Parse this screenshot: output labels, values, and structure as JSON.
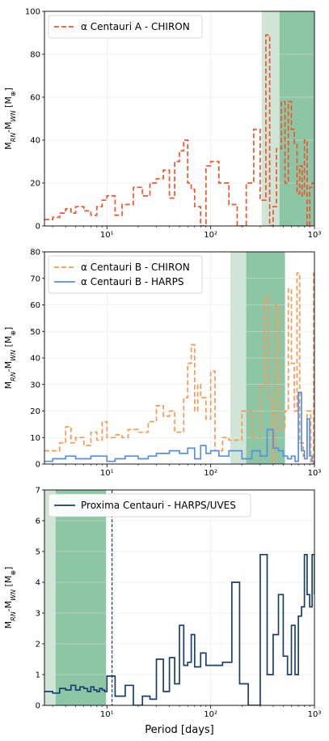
{
  "xlabel": "Period [days]",
  "chart_data": [
    {
      "type": "line",
      "step": true,
      "x_scale": "log",
      "xlim": [
        2.5,
        1000
      ],
      "ylim": [
        0,
        100
      ],
      "ylabel": "M_RN-M_WN [M_⊕]",
      "yticks": [
        0,
        20,
        40,
        60,
        80,
        100
      ],
      "xticks": [
        10,
        100,
        1000
      ],
      "xtick_labels": [
        "10¹",
        "10²",
        "10³"
      ],
      "legend": "top-left",
      "grid": true,
      "bands": [
        {
          "x0": 310,
          "x1": 460,
          "color": "#cfe5d6"
        },
        {
          "x0": 460,
          "x1": 1000,
          "color": "#8dc6a5"
        }
      ],
      "series": [
        {
          "name": "α Centauri A - CHIRON",
          "color": "#f0552e",
          "dash": "6,3",
          "x": [
            2.5,
            3.0,
            3.5,
            4.0,
            4.5,
            5.0,
            6.0,
            7.0,
            8.0,
            9.0,
            10.0,
            12.0,
            14.0,
            18.0,
            22.0,
            26.0,
            30.0,
            35.0,
            40.0,
            45.0,
            50.0,
            55.0,
            60.0,
            65.0,
            70.0,
            80.0,
            90.0,
            100.0,
            120.0,
            150.0,
            180.0,
            220.0,
            260.0,
            300.0,
            340.0,
            370.0,
            400.0,
            430.0,
            480.0,
            520.0,
            560.0,
            600.0,
            640.0,
            680.0,
            720.0,
            760.0,
            800.0,
            850.0,
            900.0,
            950.0,
            1000.0
          ],
          "values": [
            3,
            4,
            6,
            8,
            6,
            9,
            7,
            5,
            9,
            12,
            14,
            5,
            10,
            18,
            14,
            20,
            22,
            26,
            13,
            30,
            35,
            40,
            20,
            17,
            9,
            0,
            28,
            30,
            20,
            10,
            0,
            20,
            45,
            12,
            89,
            0,
            9,
            36,
            58,
            20,
            58,
            45,
            38,
            15,
            28,
            14,
            40,
            0,
            18,
            20,
            20
          ]
        }
      ]
    },
    {
      "type": "line",
      "step": true,
      "x_scale": "log",
      "xlim": [
        2.5,
        1000
      ],
      "ylim": [
        0,
        80
      ],
      "ylabel": "M_RN-M_WN [M_⊕]",
      "yticks": [
        0,
        10,
        20,
        30,
        40,
        50,
        60,
        70,
        80
      ],
      "xticks": [
        10,
        100,
        1000
      ],
      "xtick_labels": [
        "10¹",
        "10²",
        "10³"
      ],
      "legend": "top-left",
      "grid": true,
      "bands": [
        {
          "x0": 155,
          "x1": 220,
          "color": "#cfe5d6"
        },
        {
          "x0": 220,
          "x1": 520,
          "color": "#8dc6a5"
        }
      ],
      "series": [
        {
          "name": "α Centauri B - CHIRON",
          "color": "#f79a55",
          "dash": "6,3",
          "x": [
            2.5,
            3.5,
            4.0,
            4.5,
            5.0,
            6.0,
            7.0,
            8.0,
            9.0,
            10.0,
            12.0,
            14.0,
            16.0,
            20.0,
            25.0,
            30.0,
            35.0,
            40.0,
            45.0,
            50.0,
            55.0,
            60.0,
            65.0,
            70.0,
            75.0,
            80.0,
            90.0,
            100.0,
            110.0,
            130.0,
            150.0,
            175.0,
            200.0,
            250.0,
            300.0,
            330.0,
            360.0,
            390.0,
            420.0,
            460.0,
            520.0,
            560.0,
            600.0,
            640.0,
            680.0,
            720.0,
            780.0,
            850.0,
            920.0,
            980.0,
            1000.0
          ],
          "values": [
            5,
            8,
            14,
            8,
            10,
            7,
            12,
            9,
            16,
            10,
            11,
            10,
            13,
            12,
            16,
            22,
            18,
            20,
            12,
            12,
            25,
            38,
            45,
            20,
            30,
            25,
            17,
            35,
            5,
            10,
            9,
            9,
            20,
            10,
            29,
            63,
            25,
            0,
            60,
            13,
            20,
            66,
            38,
            20,
            72,
            8,
            3,
            20,
            0,
            72,
            72
          ]
        },
        {
          "name": "α Centauri B - HARPS",
          "color": "#5a8fe0",
          "dash": "",
          "x": [
            2.5,
            3.0,
            4.0,
            5.0,
            7.0,
            9.0,
            10.0,
            12.0,
            15.0,
            20.0,
            25.0,
            30.0,
            40.0,
            50.0,
            60.0,
            70.0,
            80.0,
            90.0,
            100.0,
            120.0,
            150.0,
            200.0,
            250.0,
            300.0,
            350.0,
            400.0,
            450.0,
            500.0,
            550.0,
            600.0,
            650.0,
            700.0,
            750.0,
            800.0,
            850.0,
            900.0,
            950.0,
            1000.0
          ],
          "values": [
            1,
            2,
            3,
            2,
            3,
            3,
            1,
            2,
            3,
            2,
            3,
            4,
            5,
            4,
            6,
            2,
            7,
            4,
            5,
            3,
            5,
            2,
            5,
            3,
            13,
            6,
            5,
            3,
            2,
            3,
            1,
            27,
            5,
            2,
            17,
            3,
            1,
            1
          ]
        }
      ]
    },
    {
      "type": "line",
      "step": true,
      "x_scale": "log",
      "xlim": [
        2.5,
        1000
      ],
      "ylim": [
        0,
        7
      ],
      "ylabel": "M_RN-M_WN [M_⊕]",
      "yticks": [
        0,
        1,
        2,
        3,
        4,
        5,
        6,
        7
      ],
      "xticks": [
        10,
        100,
        1000
      ],
      "xtick_labels": [
        "10¹",
        "10²",
        "10³"
      ],
      "legend": "top-left",
      "grid": true,
      "bands": [
        {
          "x0": 2.5,
          "x1": 3.2,
          "color": "#cfe5d6"
        },
        {
          "x0": 3.2,
          "x1": 9.8,
          "color": "#8dc6a5"
        }
      ],
      "vline": {
        "x": 11.2,
        "color": "#2e4a66"
      },
      "series": [
        {
          "name": "Proxima Centauri - HARPS/UVES",
          "color": "#1a3f6e",
          "dash": "",
          "x": [
            2.5,
            3.0,
            3.5,
            4.0,
            4.5,
            5.0,
            5.5,
            6.0,
            6.5,
            7.0,
            7.5,
            8.0,
            8.5,
            9.0,
            9.5,
            10.0,
            12.0,
            15.0,
            18.0,
            22.0,
            26.0,
            30.0,
            35.0,
            40.0,
            45.0,
            50.0,
            55.0,
            60.0,
            65.0,
            70.0,
            80.0,
            90.0,
            100.0,
            130.0,
            160.0,
            190.0,
            230.0,
            300.0,
            350.0,
            400.0,
            450.0,
            500.0,
            550.0,
            600.0,
            650.0,
            700.0,
            750.0,
            800.0,
            850.0,
            900.0,
            950.0,
            1000.0
          ],
          "values": [
            0.45,
            0.4,
            0.55,
            0.5,
            0.65,
            0.5,
            0.6,
            0.55,
            0.45,
            0.6,
            0.5,
            0.45,
            0.55,
            0.5,
            0.45,
            0.95,
            0.3,
            0.65,
            0.0,
            0.3,
            0.2,
            1.5,
            0.45,
            1.55,
            0.7,
            2.6,
            1.3,
            1.4,
            2.3,
            1.25,
            1.7,
            1.3,
            1.3,
            1.4,
            4.0,
            0.7,
            0.0,
            4.9,
            1.0,
            2.3,
            3.6,
            1.6,
            1.0,
            2.6,
            1.0,
            2.9,
            3.2,
            4.9,
            3.6,
            3.2,
            4.9,
            3.6
          ]
        }
      ]
    }
  ]
}
